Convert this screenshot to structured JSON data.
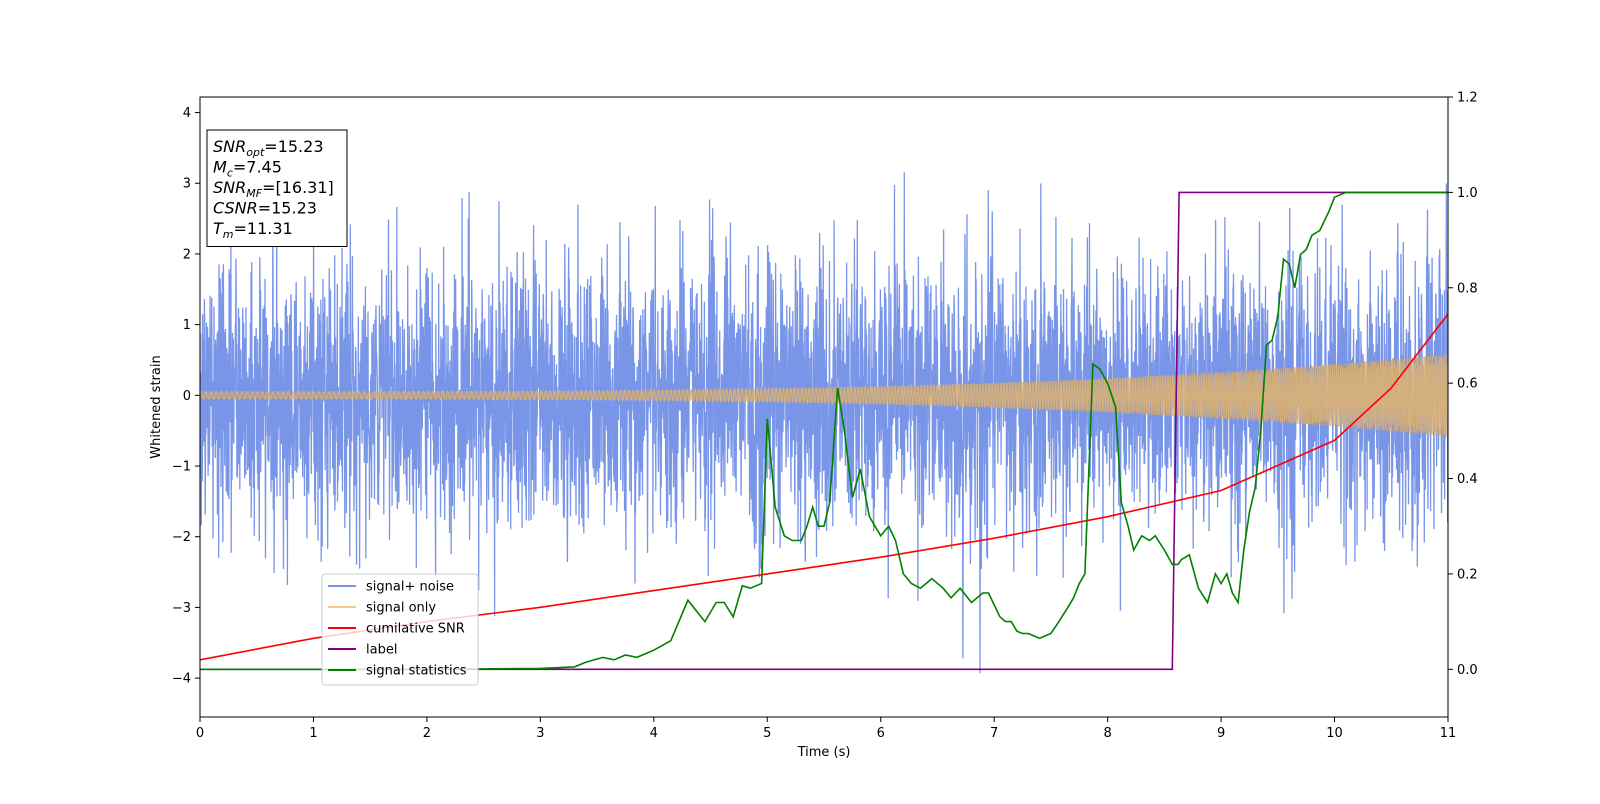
{
  "chart_data": {
    "type": "line",
    "xlabel": "Time (s)",
    "ylabel": "Whitened strain",
    "xlim": [
      0,
      11
    ],
    "ylim_left": [
      -4.55,
      4.22
    ],
    "ylim_right": [
      -0.1,
      1.2
    ],
    "xticks": [
      0,
      1,
      2,
      3,
      4,
      5,
      6,
      7,
      8,
      9,
      10,
      11
    ],
    "yticks_left": [
      -4,
      -3,
      -2,
      -1,
      0,
      1,
      2,
      3,
      4
    ],
    "yticks_left_labels": [
      "−4",
      "−3",
      "−2",
      "−1",
      "0",
      "1",
      "2",
      "3",
      "4"
    ],
    "yticks_right": [
      0.0,
      0.2,
      0.4,
      0.6,
      0.8,
      1.0,
      1.2
    ],
    "yticks_right_labels": [
      "0.0",
      "0.2",
      "0.4",
      "0.6",
      "0.8",
      "1.0",
      "1.2"
    ],
    "legend_position": "lower-left",
    "annotation_box": {
      "position": "upper-left",
      "lines": [
        {
          "base": "SNR",
          "sub": "opt",
          "rest": "=15.23"
        },
        {
          "base": "M",
          "sub": "c",
          "rest": "=7.45"
        },
        {
          "base": "SNR",
          "sub": "MF",
          "rest": "=[16.31]"
        },
        {
          "base": "CSNR",
          "sub": "",
          "rest": "=15.23"
        },
        {
          "base": "T",
          "sub": "m",
          "rest": "=11.31"
        }
      ]
    },
    "series": [
      {
        "name": "signal+ noise",
        "axis": "left",
        "color": "#7895e8",
        "style": "noise",
        "noise_std": 1.0,
        "x_range": [
          0,
          11
        ]
      },
      {
        "name": "signal only",
        "axis": "left",
        "color": "#f5c98a",
        "style": "chirp",
        "amplitude_start": 0.05,
        "amplitude_end": 0.58,
        "x_range": [
          0,
          11
        ]
      },
      {
        "name": "cumilative SNR",
        "axis": "right",
        "color": "#ff0000",
        "style": "line",
        "x": [
          0,
          1,
          2,
          3,
          4,
          5,
          6,
          7,
          8,
          9,
          10,
          10.5,
          11
        ],
        "y": [
          0.02,
          0.065,
          0.1,
          0.13,
          0.165,
          0.2,
          0.235,
          0.275,
          0.32,
          0.375,
          0.48,
          0.59,
          0.745
        ]
      },
      {
        "name": "label",
        "axis": "right",
        "color": "#800080",
        "style": "line",
        "x": [
          0,
          8.57,
          8.63,
          11
        ],
        "y": [
          0.0,
          0.0,
          1.0,
          1.0
        ]
      },
      {
        "name": "signal statistics",
        "axis": "right",
        "color": "#008000",
        "style": "line",
        "x": [
          0,
          1,
          2,
          3,
          3.3,
          3.4,
          3.55,
          3.65,
          3.75,
          3.85,
          4.0,
          4.15,
          4.3,
          4.45,
          4.55,
          4.62,
          4.7,
          4.78,
          4.85,
          4.95,
          5.0,
          5.07,
          5.15,
          5.22,
          5.3,
          5.35,
          5.4,
          5.45,
          5.5,
          5.55,
          5.62,
          5.68,
          5.75,
          5.82,
          5.9,
          6.0,
          6.07,
          6.13,
          6.2,
          6.27,
          6.35,
          6.45,
          6.55,
          6.62,
          6.7,
          6.8,
          6.9,
          6.95,
          7.0,
          7.05,
          7.1,
          7.15,
          7.2,
          7.25,
          7.3,
          7.35,
          7.4,
          7.45,
          7.5,
          7.57,
          7.65,
          7.7,
          7.75,
          7.8,
          7.87,
          7.93,
          8.0,
          8.07,
          8.12,
          8.18,
          8.23,
          8.3,
          8.37,
          8.42,
          8.5,
          8.57,
          8.62,
          8.65,
          8.72,
          8.8,
          8.88,
          8.95,
          9.0,
          9.05,
          9.1,
          9.15,
          9.2,
          9.25,
          9.3,
          9.35,
          9.4,
          9.45,
          9.5,
          9.55,
          9.6,
          9.65,
          9.7,
          9.75,
          9.8,
          9.87,
          9.95,
          10.0,
          10.1,
          10.3,
          10.5,
          11
        ],
        "y": [
          0.0,
          0.0,
          0.0,
          0.002,
          0.005,
          0.015,
          0.025,
          0.02,
          0.03,
          0.025,
          0.04,
          0.06,
          0.145,
          0.1,
          0.14,
          0.14,
          0.11,
          0.175,
          0.17,
          0.18,
          0.525,
          0.34,
          0.28,
          0.27,
          0.27,
          0.3,
          0.34,
          0.3,
          0.3,
          0.35,
          0.59,
          0.5,
          0.36,
          0.42,
          0.32,
          0.28,
          0.3,
          0.27,
          0.2,
          0.18,
          0.17,
          0.19,
          0.17,
          0.15,
          0.17,
          0.14,
          0.16,
          0.16,
          0.135,
          0.11,
          0.1,
          0.1,
          0.08,
          0.075,
          0.075,
          0.07,
          0.065,
          0.07,
          0.075,
          0.1,
          0.13,
          0.15,
          0.18,
          0.2,
          0.64,
          0.63,
          0.6,
          0.55,
          0.35,
          0.3,
          0.25,
          0.28,
          0.27,
          0.28,
          0.25,
          0.22,
          0.22,
          0.23,
          0.24,
          0.17,
          0.14,
          0.2,
          0.18,
          0.2,
          0.16,
          0.14,
          0.25,
          0.33,
          0.38,
          0.5,
          0.68,
          0.69,
          0.74,
          0.86,
          0.85,
          0.8,
          0.87,
          0.88,
          0.91,
          0.92,
          0.96,
          0.99,
          1.0,
          1.0,
          1.0,
          1.0
        ]
      }
    ]
  }
}
